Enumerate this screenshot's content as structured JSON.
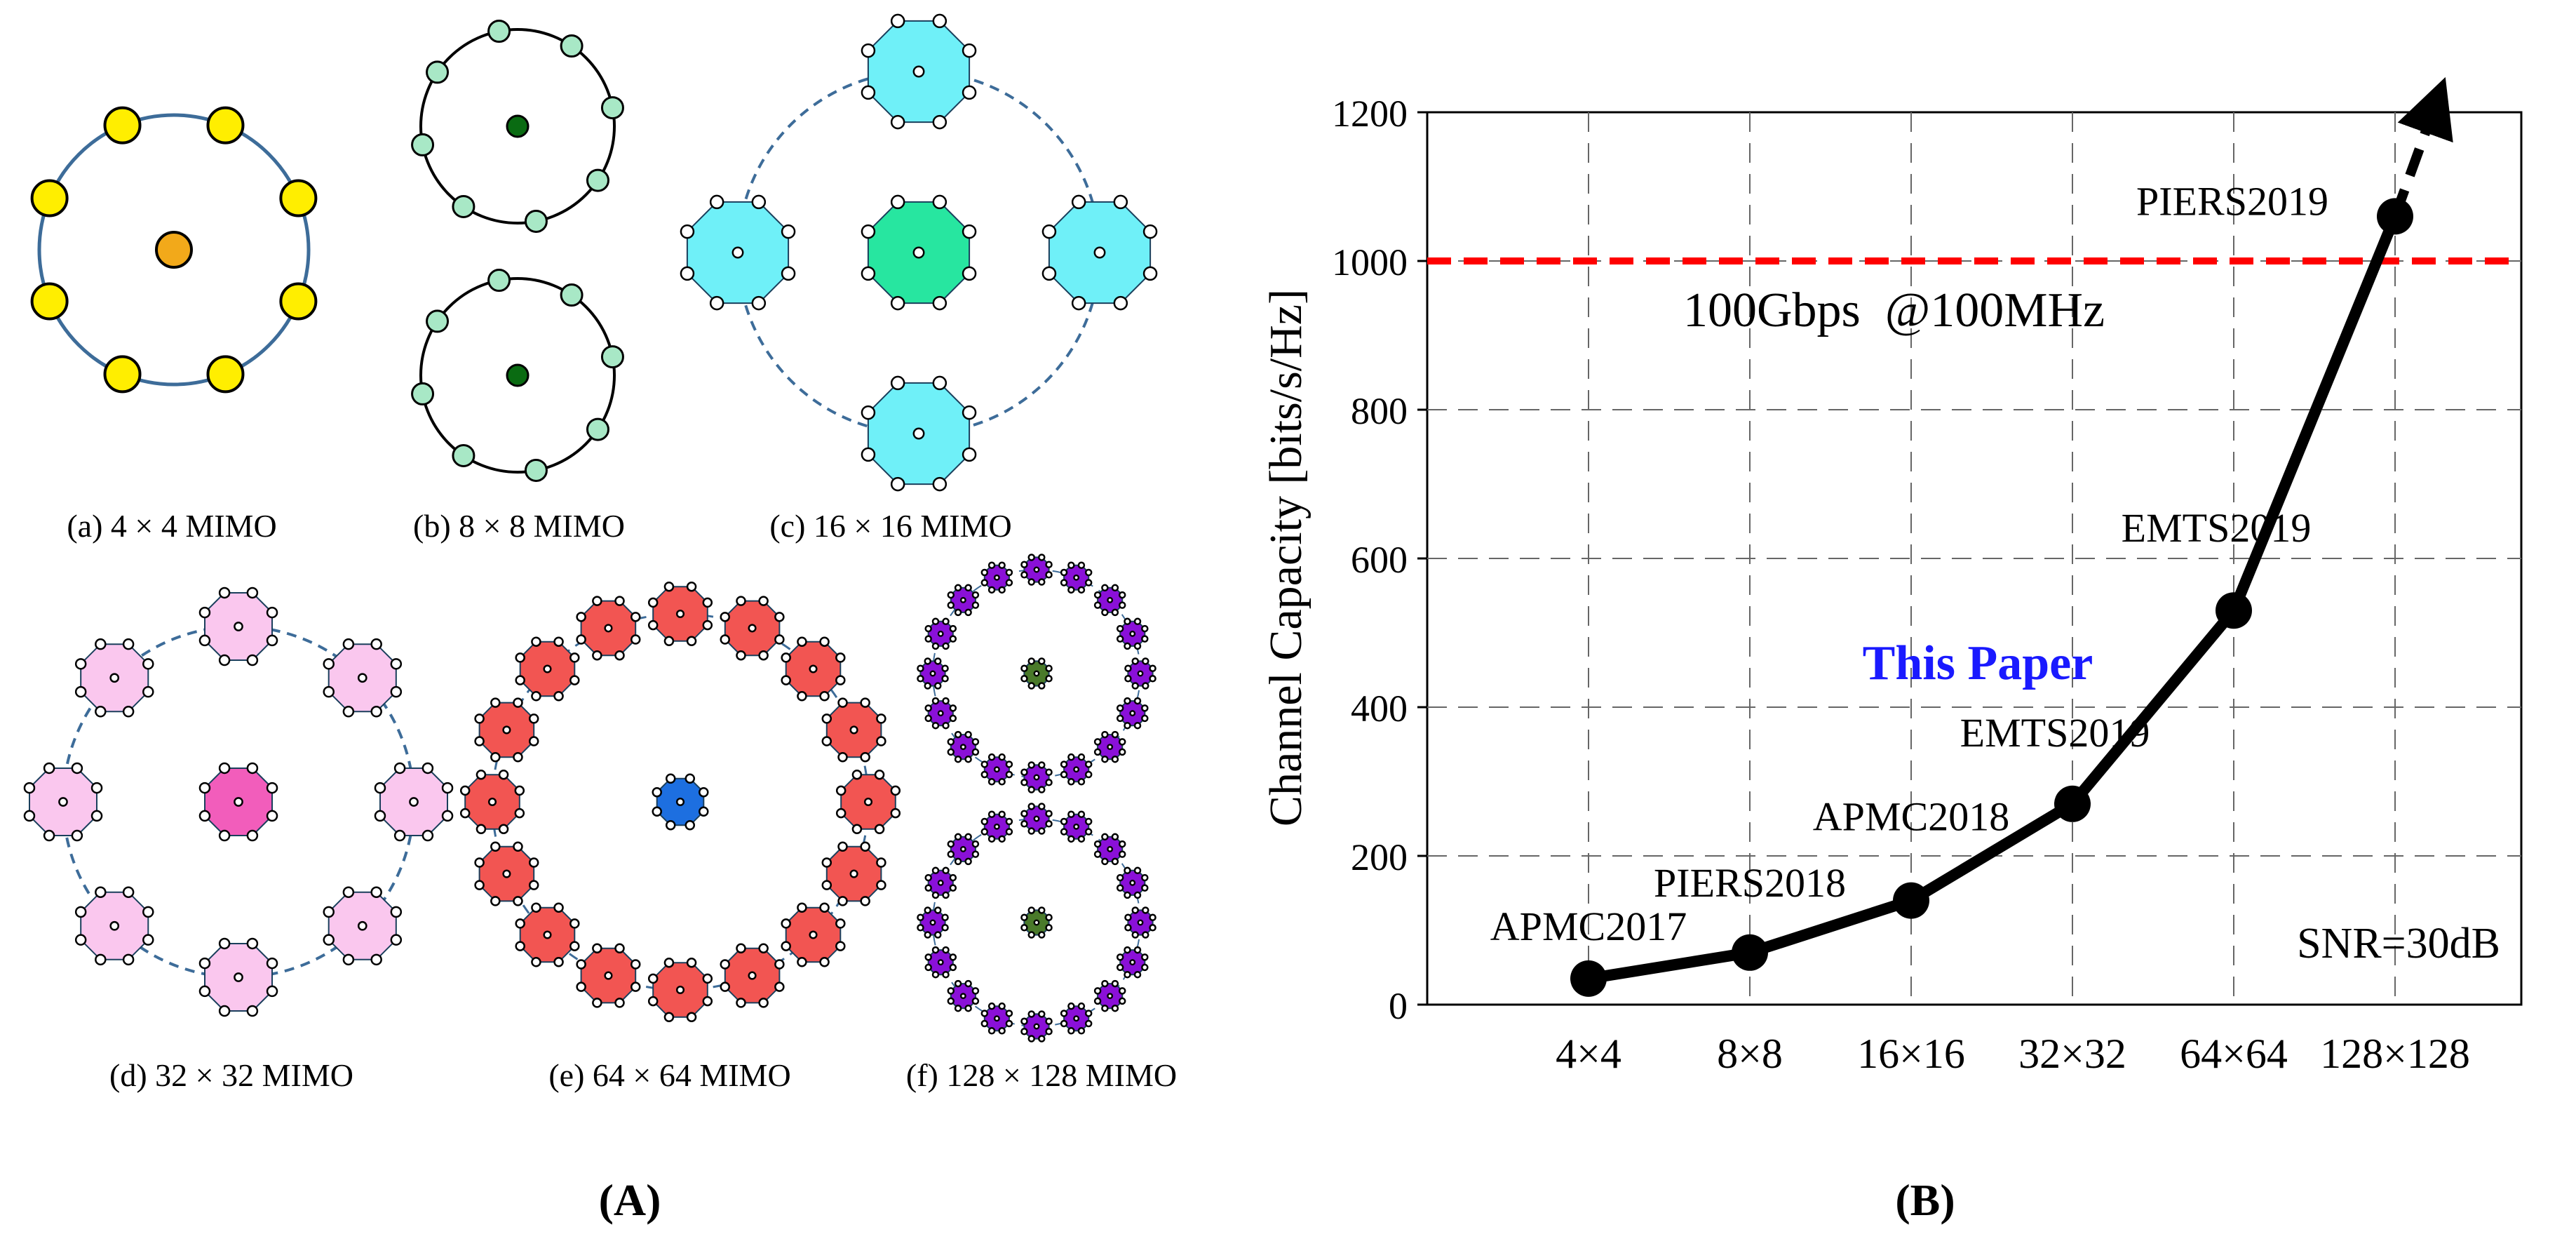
{
  "panel_a": {
    "label": "(A)",
    "subfigures": [
      {
        "caption": "(a) 4 × 4 MIMO"
      },
      {
        "caption": "(b) 8 × 8 MIMO"
      },
      {
        "caption": "(c) 16 × 16 MIMO"
      },
      {
        "caption": "(d) 32 × 32 MIMO"
      },
      {
        "caption": "(e) 64 × 64 MIMO"
      },
      {
        "caption": "(f) 128 × 128 MIMO"
      }
    ],
    "colors": {
      "yellow": "#ffee00",
      "orange": "#f2a91a",
      "mint": "#a8e8c6",
      "dark_green": "#0a6b12",
      "cyan": "#6ff0f8",
      "teal": "#27e6a0",
      "pink": "#fac7ee",
      "magenta": "#f25dbb",
      "red": "#f25552",
      "blue": "#1d6fe0",
      "purple": "#8a10d8",
      "olive": "#4a7a2a",
      "ring": "#3d6c99"
    }
  },
  "panel_b": {
    "label": "(B)",
    "annotations": {
      "this_paper": "This Paper",
      "threshold_label": "100Gbps  @100MHz",
      "snr": "SNR=30dB"
    }
  },
  "chart_data": {
    "type": "line",
    "title": "",
    "xlabel": "",
    "ylabel": "Channel Capacity [bits/s/Hz]",
    "categories": [
      "4×4",
      "8×8",
      "16×16",
      "32×32",
      "64×64",
      "128×128"
    ],
    "series": [
      {
        "name": "Channel Capacity",
        "values": [
          35,
          70,
          140,
          270,
          530,
          1060
        ],
        "point_labels": [
          "APMC2017",
          "PIERS2018",
          "APMC2018",
          "EMTS2019",
          "EMTS2019",
          "PIERS2019"
        ]
      }
    ],
    "ylim": [
      0,
      1200
    ],
    "yticks": [
      0,
      200,
      400,
      600,
      800,
      1000,
      1200
    ],
    "threshold": {
      "value": 1000,
      "color": "#ff0000"
    },
    "arrow_tip": {
      "category_index": 5.25,
      "value": 1210
    },
    "grid": true,
    "line_color": "#000000",
    "label_color": "#1a1aff"
  }
}
